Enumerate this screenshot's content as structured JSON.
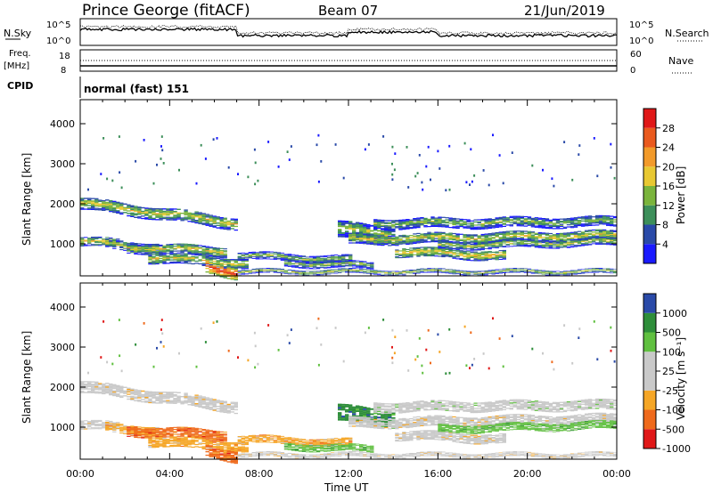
{
  "header": {
    "site": "Prince George (fitACF)",
    "beam": "Beam 07",
    "date": "21/Jun/2019"
  },
  "aux": {
    "nsky_label": "N.Sky",
    "nsky_ticks": [
      "10^5",
      "10^0"
    ],
    "nsearch_label": "N.Search",
    "nsearch_ticks": [
      "10^5",
      "10^0"
    ],
    "freq_label": "Freq.",
    "freq_unit": "[MHz]",
    "freq_ticks": [
      "18",
      "8"
    ],
    "nave_label": "Nave",
    "nave_ticks": [
      "60",
      "0"
    ],
    "cpid_label": "CPID",
    "cpid_value": "normal (fast) 151"
  },
  "colors": {
    "power": [
      "#1a1aff",
      "#2a4aa8",
      "#3d8f5a",
      "#7ab43c",
      "#e8c832",
      "#f29a2a",
      "#ea5a1e",
      "#e01818"
    ],
    "velocity": [
      "#e01818",
      "#ef6a1c",
      "#f5a626",
      "#c9c9c9",
      "#c9c9c9",
      "#60c040",
      "#2e8e3a",
      "#2a4aa8"
    ]
  },
  "chart_data": [
    {
      "type": "heatmap",
      "name": "power",
      "ylabel": "Slant Range [km]",
      "xlabel": "",
      "x_ticks": [
        "00:00",
        "04:00",
        "08:00",
        "12:00",
        "16:00",
        "20:00",
        "00:00"
      ],
      "y_ticks": [
        1000,
        2000,
        3000,
        4000
      ],
      "ylim": [
        200,
        4600
      ],
      "xlim_hours": [
        0,
        24
      ],
      "colorbar_label": "Power [dB]",
      "colorbar_ticks": [
        "4",
        "8",
        "12",
        "16",
        "20",
        "24",
        "28"
      ],
      "colorbar_range": [
        0,
        30
      ]
    },
    {
      "type": "heatmap",
      "name": "velocity",
      "ylabel": "Slant Range [km]",
      "xlabel": "Time UT",
      "x_ticks": [
        "00:00",
        "04:00",
        "08:00",
        "12:00",
        "16:00",
        "20:00",
        "00:00"
      ],
      "y_ticks": [
        1000,
        2000,
        3000,
        4000
      ],
      "ylim": [
        200,
        4600
      ],
      "xlim_hours": [
        0,
        24
      ],
      "colorbar_label": "Velocity [m s⁻¹]",
      "colorbar_ticks": [
        "1000",
        "500",
        "100",
        "25",
        "-25",
        "-100",
        "-500",
        "-1000"
      ]
    }
  ]
}
